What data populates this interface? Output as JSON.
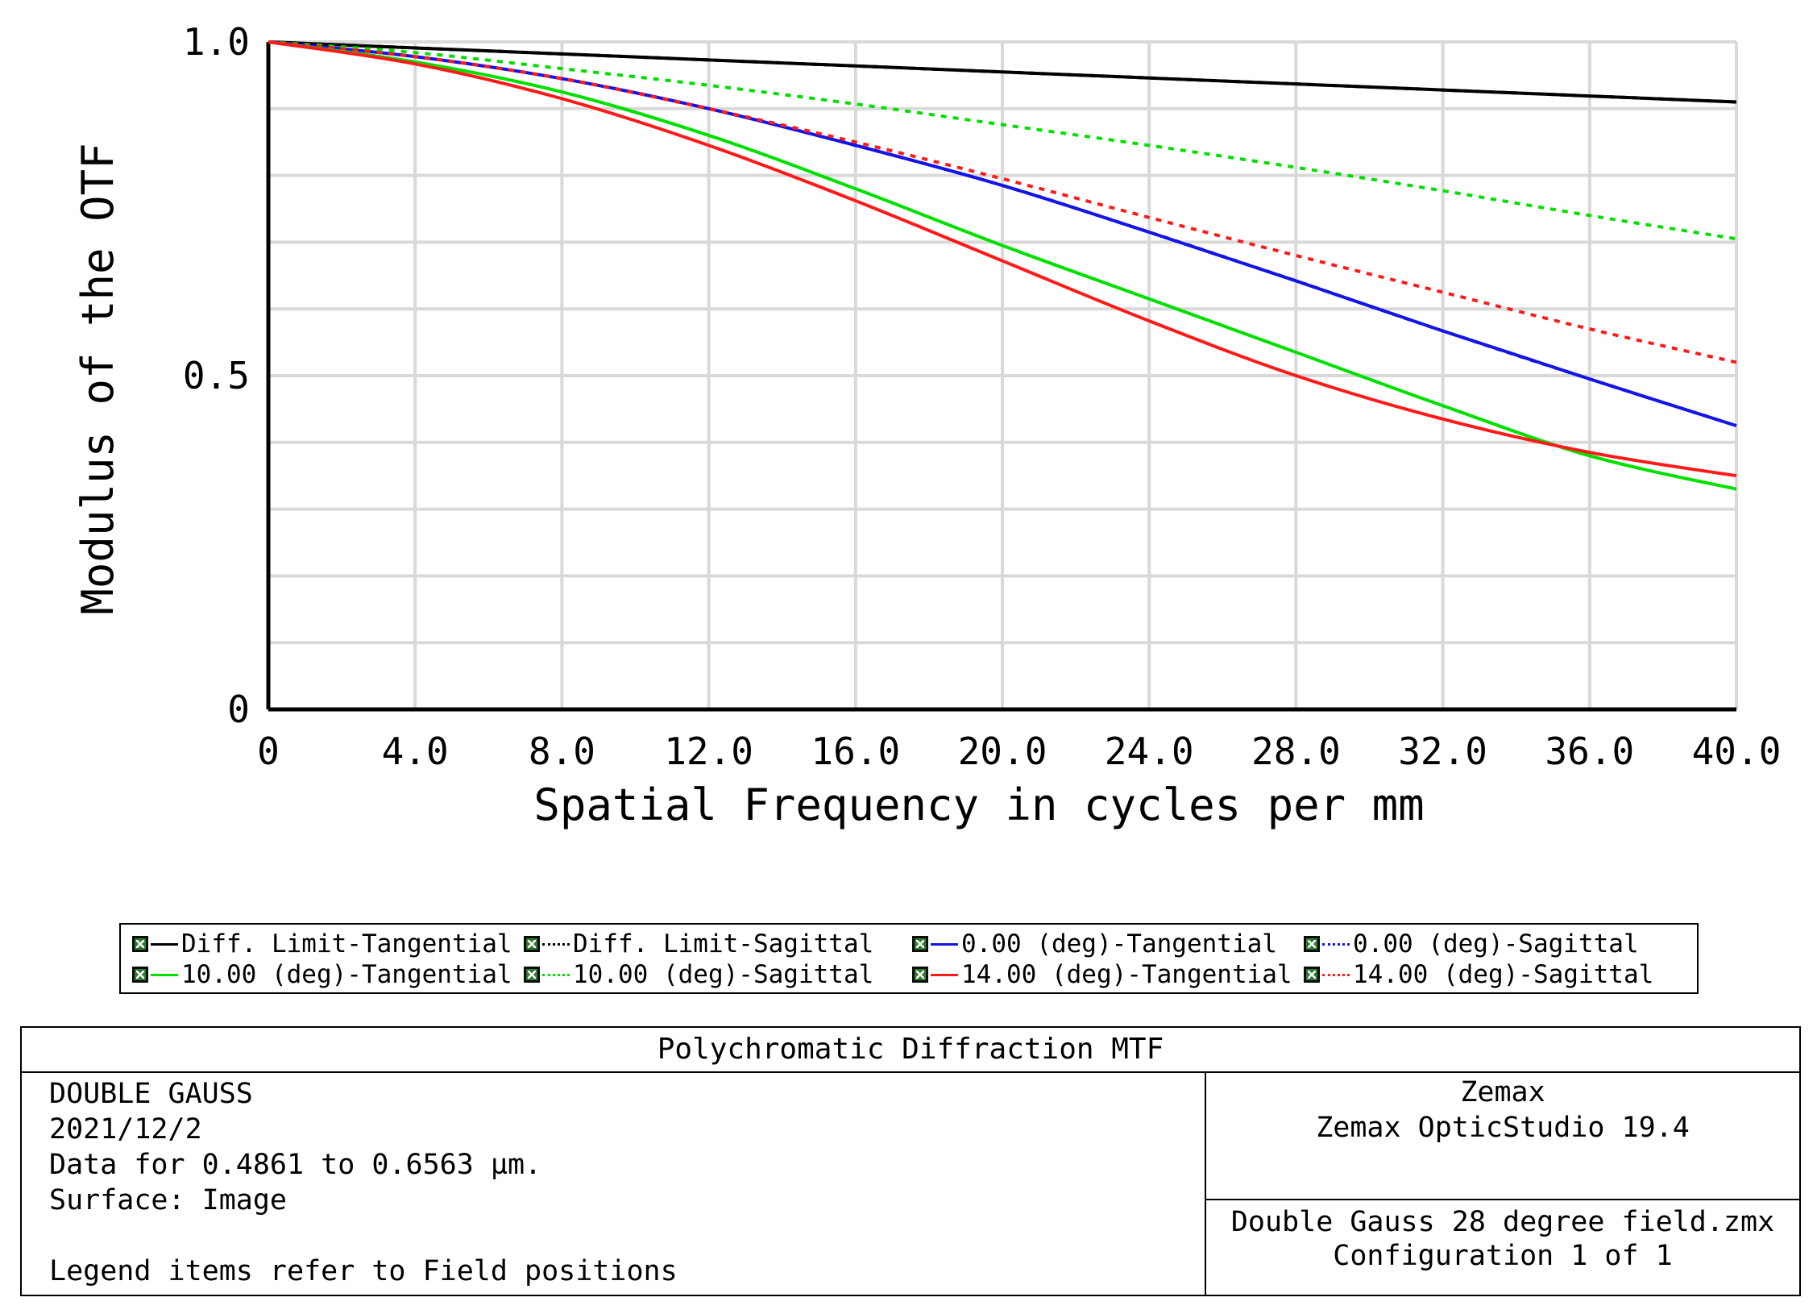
{
  "chart_data": {
    "type": "line",
    "title": "Polychromatic Diffraction MTF",
    "xlabel": "Spatial Frequency in cycles per mm",
    "ylabel": "Modulus of the OTF",
    "xlim": [
      0,
      40
    ],
    "ylim": [
      0,
      1
    ],
    "x_ticks": [
      "0",
      "4.0",
      "8.0",
      "12.0",
      "16.0",
      "20.0",
      "24.0",
      "28.0",
      "32.0",
      "36.0",
      "40.0"
    ],
    "y_ticks": [
      "0",
      "0.5",
      "1.0"
    ],
    "grid": true,
    "x": [
      0,
      4,
      8,
      12,
      16,
      20,
      24,
      28,
      32,
      36,
      40
    ],
    "series": [
      {
        "name": "Diff. Limit-Tangential",
        "color": "#000000",
        "dash": "solid",
        "values": [
          1.0,
          0.991,
          0.982,
          0.973,
          0.964,
          0.955,
          0.946,
          0.937,
          0.928,
          0.919,
          0.91
        ]
      },
      {
        "name": "Diff. Limit-Sagittal",
        "color": "#000000",
        "dash": "dotted",
        "values": [
          1.0,
          0.991,
          0.982,
          0.973,
          0.964,
          0.955,
          0.946,
          0.937,
          0.928,
          0.919,
          0.91
        ]
      },
      {
        "name": "0.00 (deg)-Tangential",
        "color": "#1414e6",
        "dash": "solid",
        "values": [
          1.0,
          0.978,
          0.945,
          0.9,
          0.845,
          0.785,
          0.715,
          0.642,
          0.567,
          0.495,
          0.425
        ]
      },
      {
        "name": "0.00 (deg)-Sagittal",
        "color": "#1414e6",
        "dash": "dotted",
        "values": [
          1.0,
          0.978,
          0.945,
          0.9,
          0.845,
          0.785,
          0.715,
          0.642,
          0.567,
          0.495,
          0.425
        ]
      },
      {
        "name": "10.00 (deg)-Tangential",
        "color": "#00e000",
        "dash": "solid",
        "values": [
          1.0,
          0.97,
          0.925,
          0.86,
          0.78,
          0.695,
          0.615,
          0.535,
          0.455,
          0.38,
          0.33
        ]
      },
      {
        "name": "10.00 (deg)-Sagittal",
        "color": "#00e000",
        "dash": "dotted",
        "values": [
          1.0,
          0.984,
          0.96,
          0.935,
          0.907,
          0.876,
          0.845,
          0.812,
          0.777,
          0.74,
          0.705
        ]
      },
      {
        "name": "14.00 (deg)-Tangential",
        "color": "#ff1a1a",
        "dash": "solid",
        "values": [
          1.0,
          0.967,
          0.915,
          0.845,
          0.762,
          0.672,
          0.582,
          0.5,
          0.435,
          0.385,
          0.35
        ]
      },
      {
        "name": "14.00 (deg)-Sagittal",
        "color": "#ff1a1a",
        "dash": "dotted",
        "values": [
          1.0,
          0.978,
          0.945,
          0.9,
          0.85,
          0.795,
          0.737,
          0.68,
          0.625,
          0.57,
          0.52
        ]
      }
    ],
    "legend_position": "bottom"
  },
  "info": {
    "title": "Polychromatic Diffraction MTF",
    "left_lines": [
      "DOUBLE GAUSS",
      "2021/12/2",
      "Data for 0.4861 to 0.6563 µm.",
      "Surface: Image",
      "",
      "Legend items refer to Field positions"
    ],
    "right_top_lines": [
      "Zemax",
      "Zemax OpticStudio 19.4"
    ],
    "right_bottom_lines": [
      "Double Gauss 28 degree field.zmx",
      "Configuration 1 of 1"
    ]
  }
}
